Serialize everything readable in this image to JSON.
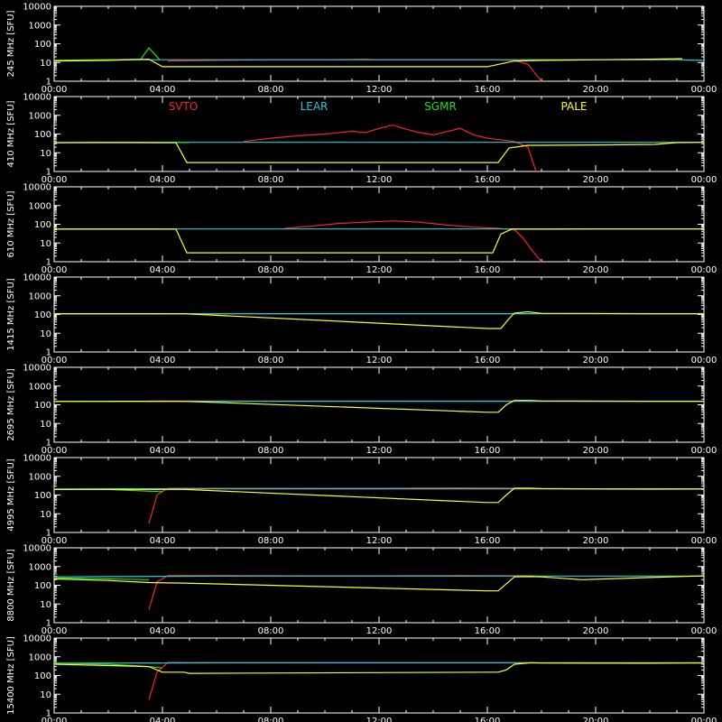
{
  "stations": [
    {
      "name": "SVTO",
      "color": "#ff2020"
    },
    {
      "name": "LEAR",
      "color": "#22ccdd"
    },
    {
      "name": "SGMR",
      "color": "#22dd22"
    },
    {
      "name": "PALE",
      "color": "#ffff22"
    }
  ],
  "x_tick_labels": [
    "00:00",
    "04:00",
    "08:00",
    "12:00",
    "16:00",
    "20:00",
    "00:00"
  ],
  "y_tick_labels": [
    "1",
    "10",
    "100",
    "1000",
    "10000"
  ],
  "chart_data": [
    {
      "type": "line",
      "ylabel": "245 MHz [SFU]",
      "x_hours": [
        0,
        24
      ],
      "yscale": "log",
      "ylim": [
        1,
        10000
      ],
      "series": [
        {
          "name": "SVTO",
          "x": [
            4.2,
            6,
            8,
            10,
            11.5,
            12,
            14,
            16,
            17,
            17.5,
            18
          ],
          "y": [
            12,
            13,
            14,
            14,
            15,
            14,
            14,
            14,
            13,
            8,
            1
          ]
        },
        {
          "name": "LEAR",
          "x": [
            0,
            2,
            4,
            6,
            8,
            9.3,
            23,
            24
          ],
          "y": [
            13,
            14,
            14,
            14,
            14,
            14,
            14,
            13
          ]
        },
        {
          "name": "SGMR",
          "x": [
            0,
            2,
            3.2,
            3.5,
            3.9
          ],
          "y": [
            13,
            14,
            15,
            60,
            14
          ]
        },
        {
          "name": "PALE",
          "x": [
            0,
            2,
            3.5,
            4,
            16,
            17,
            18,
            20,
            22,
            23.2
          ],
          "y": [
            12,
            13,
            15,
            6,
            6,
            12,
            13,
            14,
            15,
            16
          ]
        }
      ]
    },
    {
      "type": "line",
      "ylabel": "410 MHz [SFU]",
      "x_hours": [
        0,
        24
      ],
      "yscale": "log",
      "ylim": [
        1,
        10000
      ],
      "series": [
        {
          "name": "SVTO",
          "x": [
            7,
            8,
            9,
            10,
            11,
            11.5,
            12,
            12.5,
            13,
            13.5,
            14,
            15,
            15.5,
            16,
            17,
            17.5,
            17.8
          ],
          "y": [
            40,
            60,
            80,
            100,
            140,
            120,
            200,
            300,
            180,
            120,
            90,
            200,
            90,
            60,
            40,
            20,
            1
          ]
        },
        {
          "name": "LEAR",
          "x": [
            0,
            2,
            4,
            6,
            8,
            9.3,
            23,
            24
          ],
          "y": [
            35,
            36,
            36,
            36,
            36,
            36,
            36,
            36
          ]
        },
        {
          "name": "SGMR",
          "x": [
            0,
            2,
            4,
            5
          ],
          "y": [
            35,
            36,
            36,
            35
          ]
        },
        {
          "name": "PALE",
          "x": [
            0,
            2,
            4.5,
            4.9,
            16.4,
            16.8,
            17.5,
            18,
            20,
            22.2,
            23,
            24
          ],
          "y": [
            34,
            35,
            34,
            3,
            3,
            18,
            25,
            25,
            26,
            28,
            35,
            36
          ]
        }
      ]
    },
    {
      "type": "line",
      "ylabel": "610 MHz [SFU]",
      "x_hours": [
        0,
        24
      ],
      "yscale": "log",
      "ylim": [
        1,
        10000
      ],
      "series": [
        {
          "name": "SVTO",
          "x": [
            8.5,
            9.5,
            10.5,
            11.5,
            12.5,
            13.5,
            14.5,
            15.5,
            16.5,
            17,
            17.3,
            17.6,
            18
          ],
          "y": [
            60,
            80,
            110,
            130,
            150,
            130,
            90,
            70,
            60,
            50,
            20,
            5,
            1
          ]
        },
        {
          "name": "LEAR",
          "x": [
            0,
            2,
            4,
            6,
            8,
            9.3,
            23,
            24
          ],
          "y": [
            55,
            56,
            56,
            56,
            56,
            56,
            56,
            56
          ]
        },
        {
          "name": "SGMR",
          "x": [
            0,
            2,
            3.5,
            4
          ],
          "y": [
            55,
            56,
            56,
            55
          ]
        },
        {
          "name": "PALE",
          "x": [
            0,
            3,
            4.5,
            4.9,
            16.2,
            16.5,
            16.9,
            18,
            20,
            22.2,
            23,
            24
          ],
          "y": [
            55,
            55,
            55,
            3,
            3,
            30,
            55,
            55,
            56,
            56,
            56,
            56
          ]
        }
      ]
    },
    {
      "type": "line",
      "ylabel": "1415 MHz [SFU]",
      "x_hours": [
        0,
        24
      ],
      "yscale": "log",
      "ylim": [
        1,
        10000
      ],
      "series": [
        {
          "name": "SVTO",
          "x": [
            3.5,
            6,
            9,
            12,
            15,
            17.7
          ],
          "y": [
            110,
            110,
            110,
            110,
            110,
            110
          ]
        },
        {
          "name": "LEAR",
          "x": [
            0,
            2,
            4,
            6,
            8,
            9.3,
            23,
            24
          ],
          "y": [
            110,
            110,
            110,
            110,
            110,
            110,
            110,
            110
          ]
        },
        {
          "name": "SGMR",
          "x": [
            0,
            2,
            4
          ],
          "y": [
            110,
            110,
            110
          ]
        },
        {
          "name": "PALE",
          "x": [
            0,
            3,
            4.8,
            16,
            16.5,
            16.8,
            17,
            17.5,
            18,
            22,
            23,
            24
          ],
          "y": [
            110,
            110,
            110,
            18,
            18,
            60,
            120,
            140,
            115,
            110,
            110,
            110
          ]
        }
      ]
    },
    {
      "type": "line",
      "ylabel": "2695 MHz [SFU]",
      "x_hours": [
        0,
        24
      ],
      "yscale": "log",
      "ylim": [
        1,
        10000
      ],
      "series": [
        {
          "name": "SVTO",
          "x": [
            3.5,
            6,
            9,
            12,
            15,
            17.7
          ],
          "y": [
            160,
            160,
            160,
            160,
            160,
            160
          ]
        },
        {
          "name": "LEAR",
          "x": [
            0,
            2,
            4,
            6,
            8,
            9.3,
            23,
            24
          ],
          "y": [
            155,
            155,
            155,
            155,
            155,
            155,
            155,
            155
          ]
        },
        {
          "name": "SGMR",
          "x": [
            0,
            2,
            4
          ],
          "y": [
            155,
            155,
            155
          ]
        },
        {
          "name": "PALE",
          "x": [
            0,
            3,
            4.8,
            16,
            16.4,
            16.7,
            17,
            17.6,
            18,
            22,
            24
          ],
          "y": [
            150,
            155,
            155,
            40,
            40,
            100,
            170,
            170,
            160,
            155,
            155
          ]
        }
      ]
    },
    {
      "type": "line",
      "ylabel": "4995 MHz [SFU]",
      "x_hours": [
        0,
        24
      ],
      "yscale": "log",
      "ylim": [
        1,
        10000
      ],
      "series": [
        {
          "name": "SVTO",
          "x": [
            3.5,
            3.8,
            4.2,
            6,
            9,
            12,
            15,
            17.7
          ],
          "y": [
            3,
            100,
            230,
            230,
            230,
            230,
            240,
            230
          ]
        },
        {
          "name": "LEAR",
          "x": [
            0,
            2,
            4,
            6,
            8,
            9.3,
            23,
            24
          ],
          "y": [
            210,
            215,
            215,
            215,
            215,
            215,
            215,
            215
          ]
        },
        {
          "name": "SGMR",
          "x": [
            0,
            2,
            3.5,
            4
          ],
          "y": [
            200,
            200,
            160,
            150
          ]
        },
        {
          "name": "PALE",
          "x": [
            0,
            3,
            4.8,
            16,
            16.4,
            16.7,
            17,
            17.6,
            18,
            20,
            22,
            24
          ],
          "y": [
            200,
            200,
            200,
            40,
            40,
            100,
            230,
            230,
            220,
            210,
            205,
            210
          ]
        }
      ]
    },
    {
      "type": "line",
      "ylabel": "8800 MHz [SFU]",
      "x_hours": [
        0,
        24
      ],
      "yscale": "log",
      "ylim": [
        1,
        10000
      ],
      "series": [
        {
          "name": "SVTO",
          "x": [
            3.5,
            3.8,
            4.2,
            6,
            9,
            12,
            15,
            17.7
          ],
          "y": [
            5,
            150,
            330,
            330,
            320,
            320,
            330,
            320
          ]
        },
        {
          "name": "LEAR",
          "x": [
            0,
            2,
            4,
            6,
            8,
            9.3,
            23,
            24
          ],
          "y": [
            280,
            290,
            300,
            310,
            310,
            310,
            310,
            310
          ]
        },
        {
          "name": "SGMR",
          "x": [
            0,
            2,
            3.5
          ],
          "y": [
            250,
            220,
            200
          ]
        },
        {
          "name": "PALE",
          "x": [
            0,
            2,
            3.5,
            4.8,
            16,
            16.4,
            16.7,
            17,
            17.6,
            18,
            19.5,
            22,
            24
          ],
          "y": [
            220,
            180,
            140,
            130,
            50,
            50,
            120,
            280,
            290,
            280,
            200,
            260,
            320
          ]
        }
      ]
    },
    {
      "type": "line",
      "ylabel": "15400 MHz [SFU]",
      "x_hours": [
        0,
        24
      ],
      "yscale": "log",
      "ylim": [
        1,
        10000
      ],
      "series": [
        {
          "name": "SVTO",
          "x": [
            3.5,
            3.8,
            4.2,
            6,
            9,
            12,
            15,
            17.7
          ],
          "y": [
            5,
            150,
            500,
            490,
            490,
            490,
            480,
            480
          ]
        },
        {
          "name": "LEAR",
          "x": [
            0,
            2,
            4,
            6,
            8,
            9.3,
            23,
            24
          ],
          "y": [
            450,
            460,
            470,
            480,
            480,
            480,
            480,
            480
          ]
        },
        {
          "name": "SGMR",
          "x": [
            0,
            2,
            3.5,
            4
          ],
          "y": [
            450,
            400,
            300,
            250
          ]
        },
        {
          "name": "PALE",
          "x": [
            0,
            3.5,
            4,
            4.8,
            5,
            16,
            16.4,
            16.7,
            17,
            17.6,
            18,
            22,
            24
          ],
          "y": [
            400,
            300,
            150,
            150,
            130,
            150,
            150,
            200,
            400,
            480,
            460,
            450,
            470
          ]
        }
      ]
    }
  ]
}
